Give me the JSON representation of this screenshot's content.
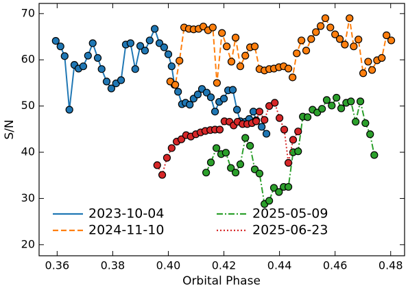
{
  "chart_data": {
    "type": "line",
    "xlabel": "Orbital Phase",
    "ylabel": "S/N",
    "xlim": [
      0.3535,
      0.485
    ],
    "ylim": [
      17.6,
      72.2
    ],
    "xticks": [
      0.36,
      0.38,
      {
        "value": 0.4,
        "label": "0.40"
      },
      0.42,
      0.44,
      0.46,
      0.48
    ],
    "yticks": [
      20,
      30,
      40,
      50,
      60,
      70
    ],
    "legend": "lower center",
    "series": [
      {
        "name": "2023-10-04",
        "color": "#1f77b4",
        "linestyle": "solid",
        "x": [
          0.3595,
          0.3612,
          0.3627,
          0.3644,
          0.3662,
          0.3677,
          0.3694,
          0.3711,
          0.3728,
          0.3746,
          0.376,
          0.3778,
          0.3795,
          0.3812,
          0.383,
          0.3847,
          0.3864,
          0.3881,
          0.3899,
          0.3916,
          0.3933,
          0.3951,
          0.3968,
          0.3985,
          0.4,
          0.4012,
          0.4022,
          0.4035,
          0.4049,
          0.4062,
          0.4077,
          0.4091,
          0.4106,
          0.4121,
          0.4138,
          0.4153,
          0.4168,
          0.4183,
          0.42,
          0.4215,
          0.4232,
          0.4247,
          0.4259,
          0.4277,
          0.4291,
          0.4306,
          0.4316,
          0.4336,
          0.4353
        ],
        "values": [
          64.1,
          62.9,
          60.8,
          49.2,
          58.9,
          58.1,
          58.6,
          60.9,
          63.6,
          60.4,
          58.0,
          55.3,
          53.8,
          54.9,
          55.6,
          63.3,
          63.6,
          58.0,
          63.0,
          62.0,
          64.2,
          66.7,
          63.6,
          62.7,
          61.2,
          58.6,
          54.6,
          53.1,
          50.4,
          50.7,
          50.3,
          51.6,
          52.5,
          53.7,
          52.9,
          51.9,
          48.8,
          50.9,
          51.6,
          53.4,
          53.5,
          49.2,
          46.7,
          46.6,
          47.2,
          48.8,
          46.9,
          45.5,
          44.0
        ]
      },
      {
        "name": "2024-11-10",
        "color": "#ff7f0e",
        "linestyle": "dashed",
        "x": [
          0.4007,
          0.4025,
          0.404,
          0.4057,
          0.4074,
          0.4091,
          0.4109,
          0.4126,
          0.4143,
          0.416,
          0.4175,
          0.4193,
          0.421,
          0.4227,
          0.4242,
          0.4259,
          0.4277,
          0.4294,
          0.4311,
          0.4328,
          0.4346,
          0.4363,
          0.438,
          0.4398,
          0.4415,
          0.4432,
          0.4447,
          0.4462,
          0.4479,
          0.4496,
          0.4514,
          0.4531,
          0.4548,
          0.4565,
          0.4583,
          0.46,
          0.4617,
          0.4635,
          0.4652,
          0.4667,
          0.4684,
          0.4701,
          0.4719,
          0.4733,
          0.4751,
          0.4768,
          0.4785,
          0.4802
        ],
        "values": [
          55.3,
          54.6,
          59.8,
          67.0,
          66.7,
          66.6,
          66.7,
          67.2,
          66.4,
          67.0,
          55.0,
          65.8,
          62.9,
          59.6,
          64.8,
          58.6,
          60.9,
          62.7,
          62.9,
          58.0,
          57.7,
          58.0,
          58.1,
          58.4,
          58.6,
          58.1,
          56.2,
          61.4,
          64.2,
          62.0,
          64.5,
          66.0,
          67.3,
          69.0,
          67.0,
          65.5,
          64.5,
          63.3,
          69.0,
          62.9,
          64.4,
          57.1,
          59.6,
          57.8,
          59.9,
          60.4,
          65.3,
          64.2
        ]
      },
      {
        "name": "2025-05-09",
        "color": "#2ca02c",
        "linestyle": "dashdot",
        "x": [
          0.4136,
          0.4153,
          0.4173,
          0.419,
          0.4207,
          0.4225,
          0.4242,
          0.4259,
          0.4277,
          0.4294,
          0.4311,
          0.4328,
          0.4346,
          0.4363,
          0.438,
          0.4398,
          0.4415,
          0.4432,
          0.4449,
          0.4467,
          0.4484,
          0.4501,
          0.4519,
          0.4536,
          0.4553,
          0.457,
          0.4588,
          0.4605,
          0.4622,
          0.464,
          0.4657,
          0.4674,
          0.4691,
          0.4709,
          0.4726,
          0.4741
        ],
        "values": [
          35.6,
          37.8,
          40.9,
          39.6,
          39.9,
          36.6,
          35.6,
          37.4,
          43.1,
          41.4,
          36.3,
          35.4,
          28.8,
          29.5,
          32.3,
          31.4,
          32.5,
          32.5,
          40.0,
          40.2,
          47.7,
          47.6,
          49.2,
          48.6,
          49.4,
          51.3,
          50.1,
          51.8,
          49.5,
          50.7,
          51.0,
          46.6,
          51.0,
          46.3,
          43.9,
          39.4
        ]
      },
      {
        "name": "2025-06-23",
        "color": "#d62728",
        "linestyle": "dotted",
        "x": [
          0.396,
          0.3978,
          0.3995,
          0.4012,
          0.403,
          0.4047,
          0.4064,
          0.4081,
          0.4099,
          0.4116,
          0.4133,
          0.4151,
          0.4168,
          0.4185,
          0.4202,
          0.422,
          0.4235,
          0.4249,
          0.4267,
          0.4284,
          0.4301,
          0.4316,
          0.4328,
          0.4346,
          0.4363,
          0.4383,
          0.44,
          0.4417,
          0.4432,
          0.4449,
          0.4467
        ],
        "values": [
          37.2,
          35.1,
          38.8,
          40.9,
          42.3,
          42.8,
          43.7,
          43.4,
          43.9,
          44.3,
          44.6,
          44.8,
          44.9,
          44.9,
          46.7,
          46.6,
          45.8,
          46.6,
          46.1,
          46.1,
          46.3,
          46.7,
          48.8,
          47.0,
          50.0,
          50.7,
          47.4,
          44.9,
          37.7,
          42.7,
          44.5
        ]
      }
    ]
  }
}
